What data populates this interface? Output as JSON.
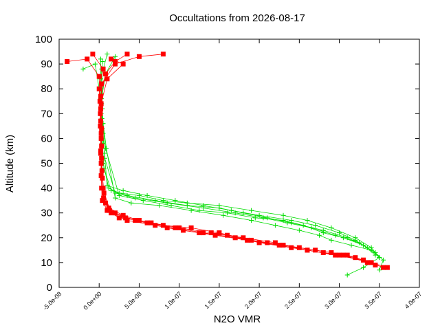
{
  "chart_data": {
    "type": "scatter",
    "title": "Occultations from 2026-08-17",
    "xlabel": "N2O VMR",
    "ylabel": "Altitude (km)",
    "xlim": [
      -5e-08,
      4e-07
    ],
    "ylim": [
      0,
      100
    ],
    "x_ticks": [
      -5e-08,
      0.0,
      5e-08,
      1e-07,
      1.5e-07,
      2e-07,
      2.5e-07,
      3e-07,
      3.5e-07,
      4e-07
    ],
    "x_tick_labels": [
      "-5.0e-08",
      "0.0e+00",
      "5.0e-08",
      "1.0e-07",
      "1.5e-07",
      "2.0e-07",
      "2.5e-07",
      "3.0e-07",
      "3.5e-07",
      "4.0e-07"
    ],
    "y_ticks": [
      0,
      10,
      20,
      30,
      40,
      50,
      60,
      70,
      80,
      90,
      100
    ],
    "y_tick_labels": [
      "0",
      "10",
      "20",
      "30",
      "40",
      "50",
      "60",
      "70",
      "80",
      "90",
      "100"
    ],
    "grid": false,
    "legend": "none",
    "series": [
      {
        "color": "#00dd00",
        "marker": "plus",
        "profiles": [
          {
            "x": [
              2e-09,
              2e-09,
              2.5e-09,
              3e-09,
              5e-09,
              1.2e-08,
              2.5e-08,
              5e-08,
              8e-08,
              1.1e-07,
              1.5e-07,
              1.9e-07,
              2.3e-07,
              2.6e-07,
              2.9e-07,
              3.2e-07,
              3.4e-07,
              3.5e-07,
              3.3e-07,
              3.1e-07
            ],
            "y": [
              92,
              80,
              70,
              60,
              50,
              40,
              38,
              37,
              35,
              34,
              33,
              31,
              29,
              27,
              24,
              20,
              16,
              12,
              8,
              5
            ]
          },
          {
            "x": [
              3e-09,
              3e-09,
              3.5e-09,
              4e-09,
              6e-09,
              1.5e-08,
              3.5e-08,
              7e-08,
              1.1e-07,
              1.5e-07,
              1.8e-07,
              2.1e-07,
              2.4e-07,
              2.8e-07,
              3.1e-07,
              3.3e-07,
              3.45e-07,
              3.55e-07,
              3.5e-07
            ],
            "y": [
              88,
              78,
              68,
              58,
              48,
              39,
              37,
              35,
              33,
              32,
              30,
              28,
              26,
              23,
              20,
              17,
              14,
              11,
              7
            ]
          },
          {
            "x": [
              4e-09,
              3.5e-09,
              4e-09,
              5e-09,
              7e-09,
              2e-08,
              4.5e-08,
              8.5e-08,
              1.3e-07,
              1.7e-07,
              2.05e-07,
              2.35e-07,
              2.65e-07,
              2.95e-07,
              3.25e-07,
              3.4e-07,
              3.5e-07
            ],
            "y": [
              91,
              82,
              72,
              62,
              52,
              38,
              36,
              34,
              32,
              30,
              28,
              26,
              24,
              21,
              18,
              15,
              12
            ]
          },
          {
            "x": [
              1e-08,
              2e-09,
              3e-09,
              4e-09,
              6.5e-09,
              1e-08,
              3e-08,
              6e-08,
              9.5e-08,
              1.3e-07,
              1.65e-07,
              2e-07,
              2.4e-07,
              2.7e-07,
              3e-07,
              3.2e-07,
              3.35e-07
            ],
            "y": [
              94,
              84,
              74,
              64,
              54,
              41,
              39,
              37,
              35,
              33,
              31,
              29,
              27,
              25,
              22,
              19,
              16
            ]
          },
          {
            "x": [
              -2e-08,
              -5e-09,
              2e-09,
              4.5e-09,
              8e-09,
              2.5e-08,
              5.5e-08,
              9e-08,
              1.25e-07,
              1.6e-07,
              1.95e-07,
              2.3e-07,
              2.55e-07,
              2.8e-07,
              3.05e-07,
              3.3e-07,
              3.45e-07
            ],
            "y": [
              88,
              90,
              76,
              66,
              56,
              37,
              35,
              33,
              31,
              30,
              28,
              27,
              25,
              22,
              20,
              17,
              13
            ]
          },
          {
            "x": [
              2e-08,
              8e-09,
              3e-09,
              5e-09,
              9e-09,
              2e-08,
              4e-08,
              7.5e-08,
              1.15e-07,
              1.55e-07,
              1.9e-07,
              2.2e-07,
              2.5e-07,
              2.75e-07,
              2.9e-07,
              3.15e-07,
              3.4e-07
            ],
            "y": [
              93,
              86,
              76,
              66,
              56,
              36,
              34,
              33,
              31,
              29,
              27,
              25,
              23,
              21,
              19,
              17,
              15
            ]
          }
        ]
      },
      {
        "color": "#ff0000",
        "marker": "square",
        "profiles": [
          {
            "x": [
              -4e-08,
              -1.5e-08,
              0.0,
              1e-09,
              1.5e-09,
              2e-09,
              2.5e-09,
              4e-09,
              1e-08,
              2.5e-08,
              5e-08,
              8e-08,
              1.15e-07,
              1.5e-07,
              1.9e-07,
              2.3e-07,
              2.7e-07,
              3.1e-07,
              3.4e-07,
              3.6e-07
            ],
            "y": [
              91,
              92,
              85,
              75,
              65,
              55,
              45,
              35,
              31,
              28,
              27,
              25,
              24,
              22,
              19,
              17,
              15,
              13,
              10,
              8
            ]
          },
          {
            "x": [
              8e-08,
              5e-08,
              2e-08,
              3e-09,
              2e-09,
              2.5e-09,
              3e-09,
              5e-09,
              1.2e-08,
              3e-08,
              6e-08,
              9.5e-08,
              1.3e-07,
              1.7e-07,
              2.1e-07,
              2.5e-07,
              2.9e-07,
              3.2e-07,
              3.45e-07
            ],
            "y": [
              94,
              93,
              90,
              82,
              72,
              62,
              52,
              40,
              32,
              29,
              26,
              24,
              22,
              20,
              18,
              16,
              14,
              12,
              9
            ]
          },
          {
            "x": [
              3.5e-08,
              2e-08,
              8e-09,
              2e-09,
              2e-09,
              3e-09,
              3.5e-09,
              6e-09,
              1.5e-08,
              3.5e-08,
              7e-08,
              1.05e-07,
              1.45e-07,
              1.85e-07,
              2.25e-07,
              2.6e-07,
              2.95e-07,
              3.3e-07,
              3.55e-07
            ],
            "y": [
              94,
              91,
              86,
              77,
              67,
              57,
              47,
              38,
              30,
              27,
              25,
              23,
              21,
              19,
              17,
              15,
              13,
              11,
              8
            ]
          },
          {
            "x": [
              -8e-09,
              5e-09,
              0.0,
              1.5e-09,
              2.5e-09,
              2.5e-09,
              3e-09,
              8e-09,
              2e-08,
              4.5e-08,
              8.5e-08,
              1.25e-07,
              1.6e-07,
              2e-07,
              2.4e-07,
              2.8e-07,
              3.05e-07,
              3.35e-07
            ],
            "y": [
              94,
              88,
              80,
              70,
              60,
              50,
              40,
              34,
              30,
              27,
              24,
              22,
              21,
              18,
              16,
              14,
              13,
              10
            ]
          },
          {
            "x": [
              1.5e-08,
              3e-08,
              1e-08,
              2.5e-09,
              3e-09,
              2e-09,
              4e-09,
              5.5e-09,
              1.3e-08,
              3.3e-08,
              6.5e-08,
              1e-07,
              1.4e-07,
              1.8e-07,
              2.2e-07,
              2.6e-07,
              3e-07,
              3.3e-07
            ],
            "y": [
              92,
              90,
              84,
              74,
              64,
              54,
              44,
              36,
              31,
              28,
              26,
              24,
              22,
              20,
              18,
              15,
              13,
              11
            ]
          }
        ]
      }
    ]
  }
}
